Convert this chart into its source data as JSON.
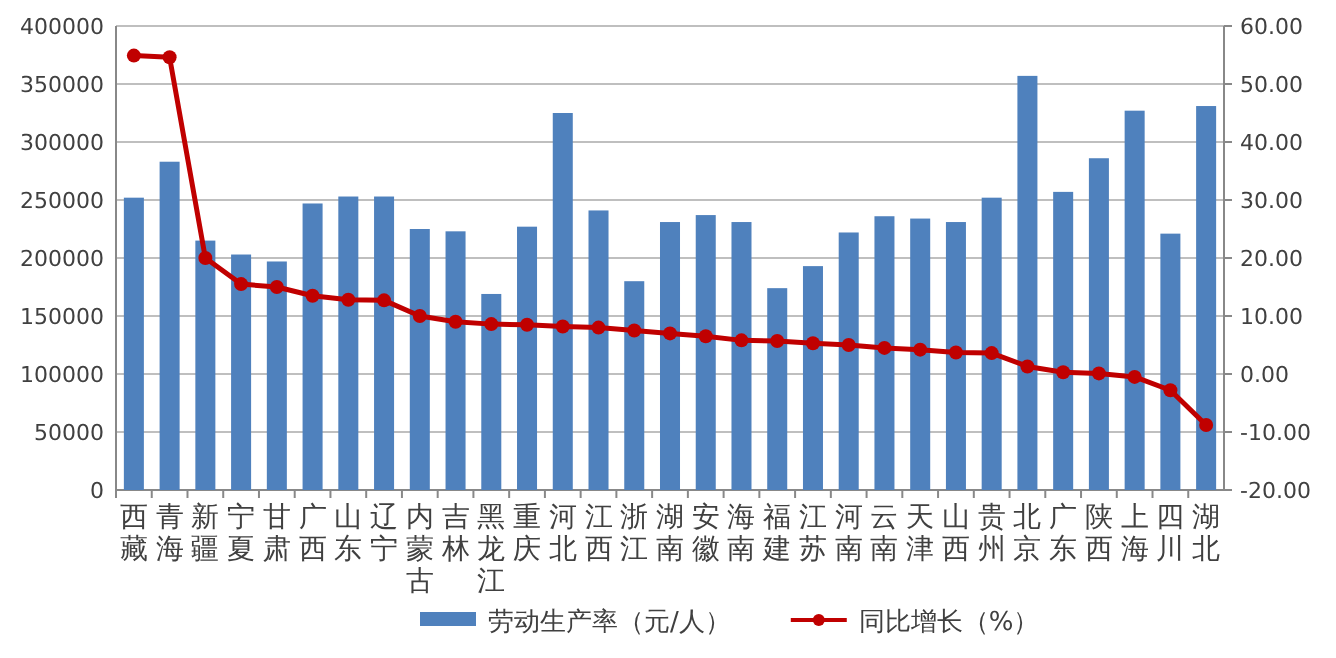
{
  "chart_data": {
    "type": "bar",
    "categories": [
      "西藏",
      "青海",
      "新疆",
      "宁夏",
      "甘肃",
      "广西",
      "山东",
      "辽宁",
      "内蒙古",
      "吉林",
      "黑龙江",
      "重庆",
      "河北",
      "江西",
      "浙江",
      "湖南",
      "安徽",
      "海南",
      "福建",
      "江苏",
      "河南",
      "云南",
      "天津",
      "山西",
      "贵州",
      "北京",
      "广东",
      "陕西",
      "上海",
      "四川",
      "湖北"
    ],
    "series": [
      {
        "name": "劳动生产率（元/人）",
        "color": "#4f81bd",
        "values": [
          252000,
          283000,
          215000,
          203000,
          197000,
          247000,
          253000,
          253000,
          225000,
          223000,
          169000,
          227000,
          325000,
          241000,
          180000,
          231000,
          237000,
          231000,
          174000,
          193000,
          222000,
          236000,
          234000,
          231000,
          252000,
          357000,
          257000,
          286000,
          327000,
          221000,
          331000
        ]
      },
      {
        "name": "同比增长（%）",
        "type": "line",
        "axis": "y2",
        "color": "#c00000",
        "marker": "circle",
        "values": [
          54.9,
          54.6,
          20,
          15.5,
          15,
          13.5,
          12.8,
          12.7,
          10,
          9,
          8.6,
          8.5,
          8.2,
          8,
          7.5,
          7,
          6.5,
          5.8,
          5.7,
          5.3,
          5,
          4.5,
          4.2,
          3.7,
          3.6,
          1.3,
          0.3,
          0.1,
          -0.5,
          -2.8,
          -8.8
        ]
      }
    ],
    "ylim": [
      0,
      400000
    ],
    "yticks": [
      0,
      50000,
      100000,
      150000,
      200000,
      250000,
      300000,
      350000,
      400000
    ],
    "y2lim": [
      -20,
      60
    ],
    "y2ticks": [
      {
        "value": -20,
        "label": "-20.00"
      },
      {
        "value": -10,
        "label": "-10.00"
      },
      {
        "value": 0,
        "label": "0.00"
      },
      {
        "value": 10,
        "label": "10.00"
      },
      {
        "value": 20,
        "label": "20.00"
      },
      {
        "value": 30,
        "label": "30.00"
      },
      {
        "value": 40,
        "label": "40.00"
      },
      {
        "value": 50,
        "label": "50.00"
      },
      {
        "value": 60,
        "label": "60.00"
      }
    ],
    "grid": "y",
    "legend": "bottom"
  }
}
